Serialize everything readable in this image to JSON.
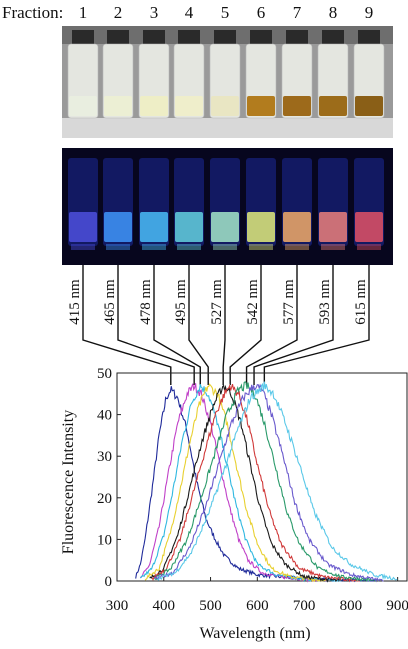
{
  "header": {
    "label": "Fraction:"
  },
  "fractions": [
    "1",
    "2",
    "3",
    "4",
    "5",
    "6",
    "7",
    "8",
    "9"
  ],
  "vials_daylight": [
    "#e9eee0",
    "#ecefd4",
    "#eeeec6",
    "#efeecb",
    "#e9e6c3",
    "#b27c1e",
    "#9d6a1b",
    "#9c6c1a",
    "#8a5f17"
  ],
  "vials_uv": [
    "#4a4cd6",
    "#3d8ff2",
    "#47b4f0",
    "#5fc6d8",
    "#9cdcc4",
    "#d6e07a",
    "#e5a368",
    "#e07a7a",
    "#d64f66"
  ],
  "peak_labels": [
    "415 nm",
    "465 nm",
    "478 nm",
    "495 nm",
    "527 nm",
    "542 nm",
    "577 nm",
    "593 nm",
    "615 nm"
  ],
  "chart_data": {
    "type": "line",
    "xlabel": "Wavelength (nm)",
    "ylabel": "Fluorescence Intensity",
    "xlim": [
      300,
      920
    ],
    "ylim": [
      0,
      50
    ],
    "xticks": [
      300,
      400,
      500,
      600,
      700,
      800,
      900
    ],
    "yticks": [
      0,
      10,
      20,
      30,
      40,
      50
    ],
    "series": [
      {
        "color": "#1f2a9a",
        "values": [
          [
            340,
            1
          ],
          [
            350,
            4
          ],
          [
            360,
            10
          ],
          [
            375,
            22
          ],
          [
            390,
            35
          ],
          [
            405,
            44
          ],
          [
            415,
            46
          ],
          [
            430,
            44
          ],
          [
            450,
            36
          ],
          [
            470,
            24
          ],
          [
            490,
            15
          ],
          [
            510,
            10
          ],
          [
            530,
            6
          ],
          [
            560,
            3
          ],
          [
            600,
            1.5
          ],
          [
            650,
            1
          ],
          [
            700,
            0.5
          ],
          [
            850,
            0
          ]
        ]
      },
      {
        "color": "#c040c8",
        "values": [
          [
            350,
            0.5
          ],
          [
            370,
            4
          ],
          [
            390,
            13
          ],
          [
            410,
            26
          ],
          [
            430,
            38
          ],
          [
            450,
            45
          ],
          [
            465,
            47
          ],
          [
            480,
            45
          ],
          [
            500,
            38
          ],
          [
            520,
            28
          ],
          [
            540,
            18
          ],
          [
            560,
            10
          ],
          [
            580,
            5
          ],
          [
            610,
            2
          ],
          [
            650,
            1
          ],
          [
            750,
            0
          ]
        ]
      },
      {
        "color": "#30b8e0",
        "values": [
          [
            350,
            0.5
          ],
          [
            375,
            3
          ],
          [
            400,
            11
          ],
          [
            420,
            22
          ],
          [
            440,
            34
          ],
          [
            460,
            43
          ],
          [
            478,
            47
          ],
          [
            495,
            45
          ],
          [
            515,
            38
          ],
          [
            535,
            28
          ],
          [
            555,
            18
          ],
          [
            575,
            10
          ],
          [
            600,
            4
          ],
          [
            640,
            1.5
          ],
          [
            700,
            0.5
          ],
          [
            780,
            0
          ]
        ]
      },
      {
        "color": "#e8d030",
        "values": [
          [
            360,
            0.5
          ],
          [
            390,
            3
          ],
          [
            415,
            12
          ],
          [
            435,
            22
          ],
          [
            455,
            33
          ],
          [
            475,
            42
          ],
          [
            495,
            47
          ],
          [
            515,
            45
          ],
          [
            535,
            38
          ],
          [
            555,
            28
          ],
          [
            575,
            18
          ],
          [
            600,
            9
          ],
          [
            630,
            3
          ],
          [
            670,
            1
          ],
          [
            750,
            0
          ]
        ]
      },
      {
        "color": "#1a1a1a",
        "values": [
          [
            370,
            0.5
          ],
          [
            400,
            3
          ],
          [
            430,
            11
          ],
          [
            455,
            22
          ],
          [
            480,
            33
          ],
          [
            505,
            42
          ],
          [
            527,
            47
          ],
          [
            545,
            45
          ],
          [
            565,
            38
          ],
          [
            585,
            28
          ],
          [
            605,
            18
          ],
          [
            630,
            9
          ],
          [
            660,
            4
          ],
          [
            700,
            1
          ],
          [
            780,
            0
          ]
        ]
      },
      {
        "color": "#d03a3a",
        "values": [
          [
            375,
            0.5
          ],
          [
            405,
            3
          ],
          [
            435,
            10
          ],
          [
            460,
            20
          ],
          [
            485,
            30
          ],
          [
            510,
            40
          ],
          [
            530,
            45
          ],
          [
            542,
            47
          ],
          [
            560,
            45
          ],
          [
            580,
            38
          ],
          [
            600,
            28
          ],
          [
            625,
            17
          ],
          [
            650,
            9
          ],
          [
            690,
            3
          ],
          [
            740,
            1
          ],
          [
            820,
            0
          ]
        ]
      },
      {
        "color": "#2a9a6a",
        "values": [
          [
            380,
            0.5
          ],
          [
            415,
            3
          ],
          [
            450,
            10
          ],
          [
            480,
            20
          ],
          [
            510,
            31
          ],
          [
            535,
            40
          ],
          [
            560,
            46
          ],
          [
            577,
            47
          ],
          [
            595,
            45
          ],
          [
            615,
            38
          ],
          [
            640,
            27
          ],
          [
            665,
            16
          ],
          [
            690,
            9
          ],
          [
            730,
            3
          ],
          [
            780,
            1
          ],
          [
            860,
            0
          ]
        ]
      },
      {
        "color": "#6a5acd",
        "values": [
          [
            380,
            0.5
          ],
          [
            420,
            2
          ],
          [
            455,
            8
          ],
          [
            490,
            18
          ],
          [
            520,
            29
          ],
          [
            545,
            38
          ],
          [
            570,
            44
          ],
          [
            593,
            47
          ],
          [
            610,
            46
          ],
          [
            630,
            40
          ],
          [
            655,
            30
          ],
          [
            680,
            19
          ],
          [
            710,
            10
          ],
          [
            750,
            4
          ],
          [
            800,
            1.5
          ],
          [
            870,
            0
          ]
        ]
      },
      {
        "color": "#5ac8e8",
        "values": [
          [
            385,
            0.5
          ],
          [
            425,
            2
          ],
          [
            460,
            7
          ],
          [
            495,
            16
          ],
          [
            530,
            27
          ],
          [
            560,
            37
          ],
          [
            585,
            44
          ],
          [
            605,
            46
          ],
          [
            615,
            47
          ],
          [
            635,
            45
          ],
          [
            660,
            38
          ],
          [
            690,
            28
          ],
          [
            720,
            17
          ],
          [
            760,
            8
          ],
          [
            800,
            4
          ],
          [
            850,
            1.5
          ],
          [
            900,
            0.5
          ]
        ]
      }
    ]
  }
}
